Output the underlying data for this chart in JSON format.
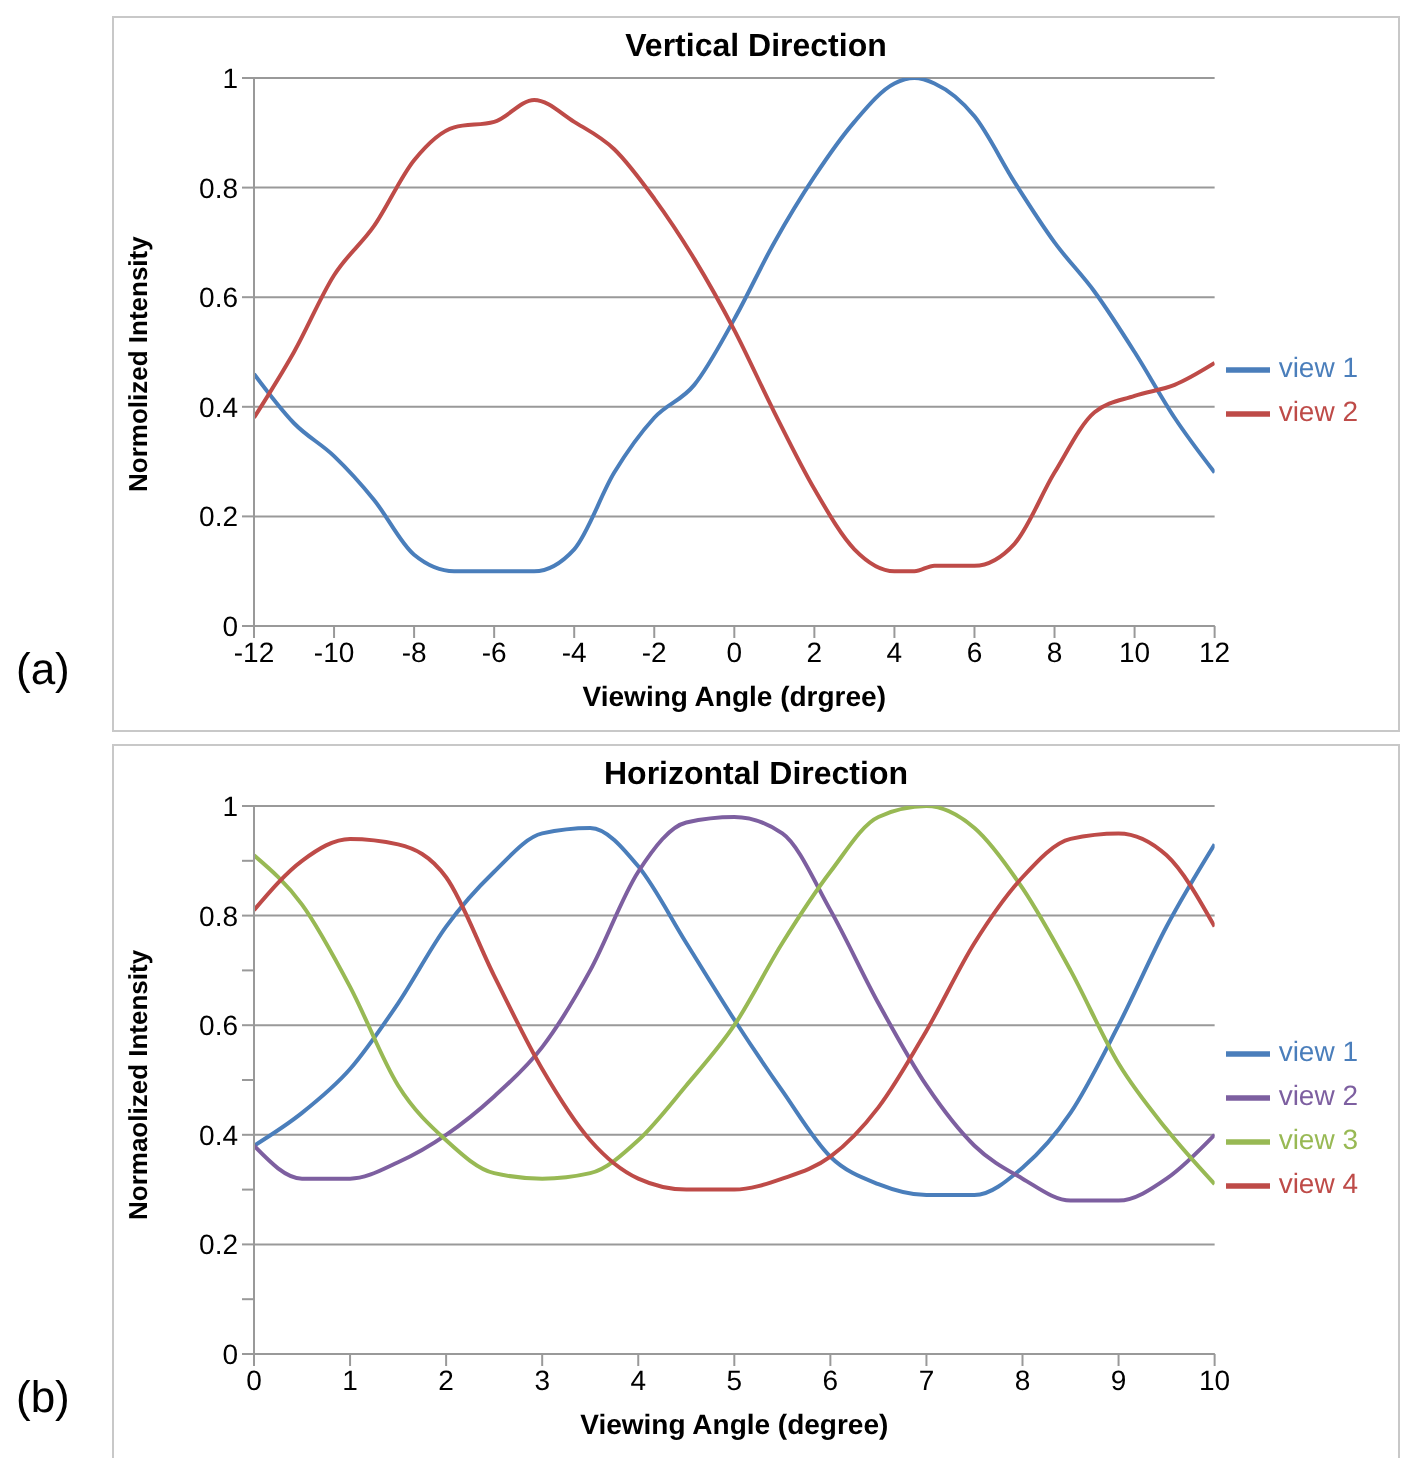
{
  "chart_data": [
    {
      "type": "line",
      "title": "Vertical Direction",
      "xlabel": "Viewing Angle (drgree)",
      "ylabel": "Normolized Intensity",
      "annotations": [
        "(a)"
      ],
      "x": [
        -12,
        -11,
        -10,
        -9,
        -8,
        -7,
        -6,
        -5,
        -4,
        -3,
        -2,
        -1,
        0,
        1,
        2,
        3,
        4,
        4.5,
        5,
        6,
        7,
        8,
        9,
        10,
        11,
        12
      ],
      "series": [
        {
          "name": "view 1",
          "color": "#4a7ebb",
          "values": [
            0.46,
            0.37,
            0.31,
            0.23,
            0.13,
            0.1,
            0.1,
            0.1,
            0.14,
            0.28,
            0.38,
            0.44,
            0.56,
            0.7,
            0.82,
            0.92,
            0.99,
            1.0,
            0.99,
            0.93,
            0.81,
            0.7,
            0.61,
            0.5,
            0.38,
            0.28
          ]
        },
        {
          "name": "view 2",
          "color": "#be4b48",
          "values": [
            0.38,
            0.5,
            0.64,
            0.73,
            0.85,
            0.91,
            0.92,
            0.96,
            0.92,
            0.87,
            0.78,
            0.67,
            0.54,
            0.39,
            0.25,
            0.14,
            0.1,
            0.1,
            0.11,
            0.11,
            0.15,
            0.28,
            0.39,
            0.42,
            0.44,
            0.48
          ]
        }
      ],
      "xlim": [
        -12,
        12
      ],
      "xticks": [
        -12,
        -10,
        -8,
        -6,
        -4,
        -2,
        0,
        2,
        4,
        6,
        8,
        10,
        12
      ],
      "ylim": [
        0,
        1
      ],
      "yticks": [
        0,
        0.2,
        0.4,
        0.6,
        0.8,
        1
      ],
      "grid": "y",
      "legend": "right",
      "marker": "none",
      "line_style": "solid"
    },
    {
      "type": "line",
      "title": "Horizontal Direction",
      "xlabel": "Viewing Angle (degree)",
      "ylabel": "Normaolized Intensity",
      "annotations": [
        "(b)"
      ],
      "x": [
        0,
        0.5,
        1,
        1.5,
        2,
        2.5,
        3,
        3.5,
        4,
        4.5,
        5,
        5.5,
        6,
        6.5,
        7,
        7.5,
        8,
        8.5,
        9,
        9.5,
        10
      ],
      "series": [
        {
          "name": "view 1",
          "color": "#4a7ebb",
          "values": [
            0.38,
            0.44,
            0.52,
            0.64,
            0.78,
            0.88,
            0.95,
            0.96,
            0.89,
            0.75,
            0.61,
            0.48,
            0.36,
            0.31,
            0.29,
            0.29,
            0.34,
            0.44,
            0.6,
            0.78,
            0.93
          ]
        },
        {
          "name": "view 2",
          "color": "#7d5fa0",
          "values": [
            0.38,
            0.32,
            0.32,
            0.35,
            0.4,
            0.47,
            0.56,
            0.7,
            0.88,
            0.97,
            0.98,
            0.95,
            0.81,
            0.64,
            0.49,
            0.38,
            0.32,
            0.28,
            0.28,
            0.32,
            0.4
          ]
        },
        {
          "name": "view 3",
          "color": "#98b954",
          "values": [
            0.91,
            0.82,
            0.67,
            0.49,
            0.39,
            0.33,
            0.32,
            0.33,
            0.39,
            0.49,
            0.6,
            0.75,
            0.88,
            0.98,
            1.0,
            0.96,
            0.85,
            0.7,
            0.53,
            0.41,
            0.31
          ]
        },
        {
          "name": "view 4",
          "color": "#be4b48",
          "values": [
            0.81,
            0.9,
            0.94,
            0.93,
            0.87,
            0.69,
            0.52,
            0.39,
            0.32,
            0.3,
            0.3,
            0.32,
            0.36,
            0.45,
            0.59,
            0.75,
            0.87,
            0.94,
            0.95,
            0.91,
            0.78
          ]
        }
      ],
      "xlim": [
        0,
        10
      ],
      "xticks": [
        0,
        1,
        2,
        3,
        4,
        5,
        6,
        7,
        8,
        9,
        10
      ],
      "ylim": [
        0,
        1
      ],
      "yticks": [
        0,
        {
          "value": 0.1,
          "label": null
        },
        0.2,
        {
          "value": 0.3,
          "label": null
        },
        0.4,
        {
          "value": 0.5,
          "label": null
        },
        0.6,
        {
          "value": 0.7,
          "label": null
        },
        0.8,
        {
          "value": 0.9,
          "label": null
        },
        1
      ],
      "grid": "y",
      "legend": "right",
      "marker": "none",
      "line_style": "solid"
    }
  ]
}
